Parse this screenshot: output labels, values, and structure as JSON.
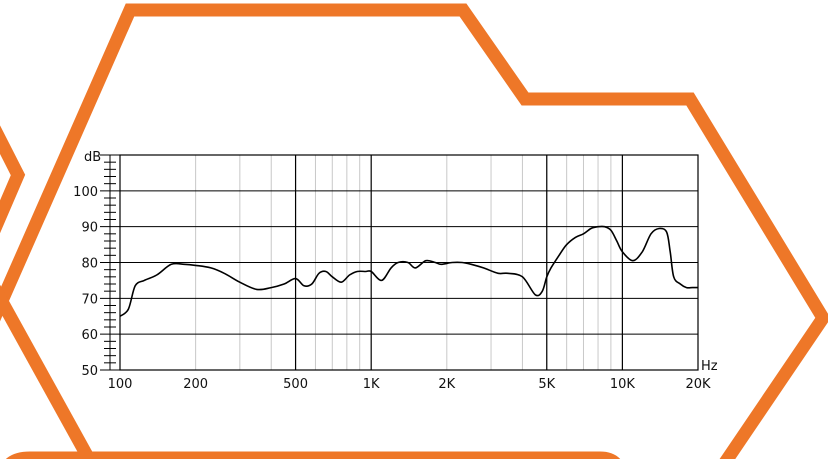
{
  "colors": {
    "frame": "#EE7728",
    "curve": "#000000",
    "grid_minor": "#c8c8c8",
    "grid_major": "#000000"
  },
  "chart_data": {
    "type": "line",
    "title": "",
    "xlabel": "Hz",
    "ylabel": "dB",
    "x_scale": "log",
    "xlim": [
      100,
      20000
    ],
    "ylim": [
      50,
      110
    ],
    "grid": true,
    "x_ticks": [
      {
        "value": 100,
        "label": "100"
      },
      {
        "value": 200,
        "label": "200"
      },
      {
        "value": 500,
        "label": "500"
      },
      {
        "value": 1000,
        "label": "1K"
      },
      {
        "value": 2000,
        "label": "2K"
      },
      {
        "value": 5000,
        "label": "5K"
      },
      {
        "value": 10000,
        "label": "10K"
      },
      {
        "value": 20000,
        "label": "20K"
      }
    ],
    "y_ticks": [
      {
        "value": 50,
        "label": "50"
      },
      {
        "value": 60,
        "label": "60"
      },
      {
        "value": 70,
        "label": "70"
      },
      {
        "value": 80,
        "label": "80"
      },
      {
        "value": 90,
        "label": "90"
      },
      {
        "value": 100,
        "label": "100"
      }
    ],
    "series": [
      {
        "x": [
          100,
          108,
          115,
          125,
          140,
          160,
          180,
          200,
          230,
          260,
          300,
          350,
          400,
          450,
          500,
          540,
          580,
          620,
          660,
          700,
          760,
          820,
          880,
          950,
          1000,
          1100,
          1200,
          1280,
          1400,
          1500,
          1650,
          1800,
          1900,
          2100,
          2300,
          2500,
          2800,
          3200,
          3500,
          4000,
          4500,
          4800,
          5000,
          5200,
          5600,
          6000,
          6500,
          7000,
          7500,
          8000,
          8500,
          9000,
          9500,
          10000,
          11000,
          12000,
          13000,
          14000,
          15000,
          15500,
          16000,
          17000,
          18000,
          19000,
          20000
        ],
        "y": [
          65,
          67,
          73.5,
          75,
          76.5,
          79.5,
          79.5,
          79.2,
          78.5,
          77,
          74.5,
          72.5,
          73,
          74,
          75.5,
          73.5,
          74,
          77,
          77.5,
          76,
          74.5,
          76.5,
          77.5,
          77.5,
          77.5,
          75,
          78.5,
          80,
          80,
          78.5,
          80.5,
          80,
          79.5,
          80,
          80,
          79.5,
          78.5,
          77,
          77,
          76,
          71,
          72,
          76,
          78.5,
          82,
          85,
          87,
          88,
          89.5,
          90,
          90,
          89,
          86,
          83,
          80.5,
          83,
          88,
          89.5,
          88.5,
          83,
          76,
          74,
          73,
          73,
          73
        ]
      }
    ]
  }
}
